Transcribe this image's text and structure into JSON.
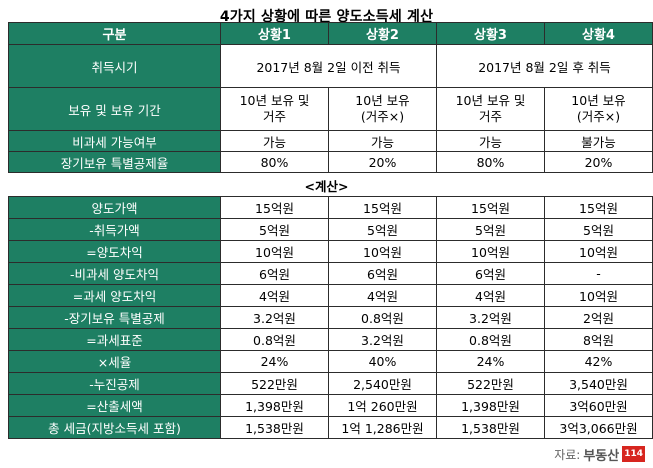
{
  "title": "4가지 상황에 따른 양도소득세 계산",
  "header": {
    "col0": "구분",
    "cols": [
      "상황1",
      "상황2",
      "상황3",
      "상황4"
    ]
  },
  "info": {
    "acquire_label": "취득시기",
    "acquire_before": "2017년 8월 2일 이전 취득",
    "acquire_after": "2017년 8월 2일 후 취득",
    "hold_label": "보유 및 보유 기간",
    "hold": [
      [
        "10년 보유 및",
        "거주"
      ],
      [
        "10년 보유",
        "(거주×)"
      ],
      [
        "10년 보유 및",
        "거주"
      ],
      [
        "10년 보유",
        "(거주×)"
      ]
    ],
    "taxfree_label": "비과세 가능여부",
    "taxfree": [
      "가능",
      "가능",
      "가능",
      "불가능"
    ],
    "deduction_label": "장기보유 특별공제율",
    "deduction": [
      "80%",
      "20%",
      "80%",
      "20%"
    ]
  },
  "calc_title": "<계산>",
  "calc_rows": [
    {
      "label": "양도가액",
      "values": [
        "15억원",
        "15억원",
        "15억원",
        "15억원"
      ]
    },
    {
      "label": "-취득가액",
      "values": [
        "5억원",
        "5억원",
        "5억원",
        "5억원"
      ]
    },
    {
      "label": "=양도차익",
      "values": [
        "10억원",
        "10억원",
        "10억원",
        "10억원"
      ]
    },
    {
      "label": "-비과세 양도차익",
      "values": [
        "6억원",
        "6억원",
        "6억원",
        "-"
      ]
    },
    {
      "label": "=과세 양도차익",
      "values": [
        "4억원",
        "4억원",
        "4억원",
        "10억원"
      ]
    },
    {
      "label": "-장기보유 특별공제",
      "values": [
        "3.2억원",
        "0.8억원",
        "3.2억원",
        "2억원"
      ]
    },
    {
      "label": "=과세표준",
      "values": [
        "0.8억원",
        "3.2억원",
        "0.8억원",
        "8억원"
      ]
    },
    {
      "label": "×세율",
      "values": [
        "24%",
        "40%",
        "24%",
        "42%"
      ]
    },
    {
      "label": "-누진공제",
      "values": [
        "522만원",
        "2,540만원",
        "522만원",
        "3,540만원"
      ]
    },
    {
      "label": "=산출세액",
      "values": [
        "1,398만원",
        "1억 260만원",
        "1,398만원",
        "3억60만원"
      ]
    },
    {
      "label": "총 세금(지방소득세 포함)",
      "values": [
        "1,538만원",
        "1억 1,286만원",
        "1,538만원",
        "3억3,066만원"
      ]
    }
  ],
  "source": {
    "label": "자료:",
    "logo_text": "부동산",
    "logo_badge": "114"
  },
  "colors": {
    "header_green": "#1e7f63",
    "logo_red": "#d7261f"
  }
}
